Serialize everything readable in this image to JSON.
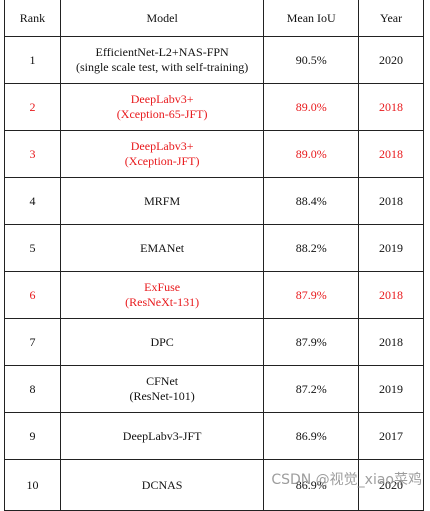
{
  "table": {
    "headers": {
      "rank": "Rank",
      "model": "Model",
      "miou": "Mean IoU",
      "year": "Year"
    },
    "rows": [
      {
        "rank": "1",
        "model_line1": "EfficientNet-L2+NAS-FPN",
        "model_line2": "(single scale test, with self-training)",
        "miou": "90.5%",
        "year": "2020",
        "highlight": false
      },
      {
        "rank": "2",
        "model_line1": "DeepLabv3+",
        "model_line2": "(Xception-65-JFT)",
        "miou": "89.0%",
        "year": "2018",
        "highlight": true
      },
      {
        "rank": "3",
        "model_line1": "DeepLabv3+",
        "model_line2": "(Xception-JFT)",
        "miou": "89.0%",
        "year": "2018",
        "highlight": true
      },
      {
        "rank": "4",
        "model_line1": "MRFM",
        "model_line2": "",
        "miou": "88.4%",
        "year": "2018",
        "highlight": false
      },
      {
        "rank": "5",
        "model_line1": "EMANet",
        "model_line2": "",
        "miou": "88.2%",
        "year": "2019",
        "highlight": false
      },
      {
        "rank": "6",
        "model_line1": "ExFuse",
        "model_line2": "(ResNeXt-131)",
        "miou": "87.9%",
        "year": "2018",
        "highlight": true
      },
      {
        "rank": "7",
        "model_line1": "DPC",
        "model_line2": "",
        "miou": "87.9%",
        "year": "2018",
        "highlight": false
      },
      {
        "rank": "8",
        "model_line1": "CFNet",
        "model_line2": "(ResNet-101)",
        "miou": "87.2%",
        "year": "2019",
        "highlight": false
      },
      {
        "rank": "9",
        "model_line1": "DeepLabv3-JFT",
        "model_line2": "",
        "miou": "86.9%",
        "year": "2017",
        "highlight": false
      },
      {
        "rank": "10",
        "model_line1": "DCNAS",
        "model_line2": "",
        "miou": "86.9%",
        "year": "2020",
        "highlight": false
      }
    ]
  },
  "watermark": "CSDN @视觉_xiao菜鸡",
  "colors": {
    "highlight": "#e8191c",
    "text": "#111111",
    "border": "#222222"
  }
}
